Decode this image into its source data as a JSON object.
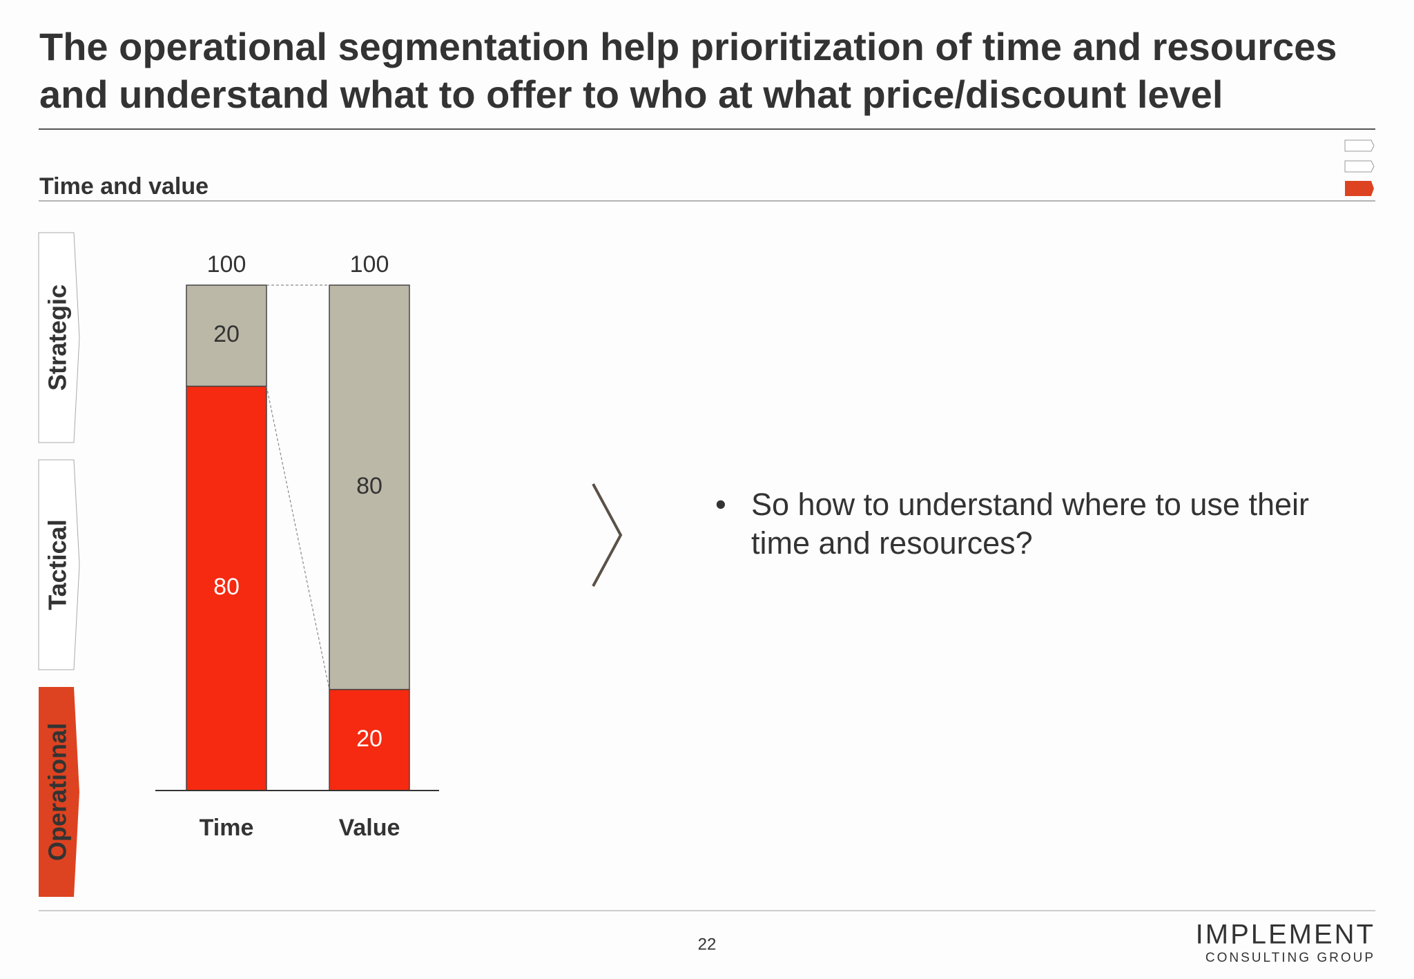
{
  "slide": {
    "title_lines": [
      "The operational segmentation help prioritization of time and resources",
      "and understand what to offer to who at what price/discount level"
    ],
    "section": "Time and value",
    "segments": [
      "Strategic",
      "Tactical",
      "Operational"
    ],
    "bullet": "•",
    "bullet_lines": [
      "So how to understand where to use their",
      "time and resources?"
    ],
    "page_number": "22",
    "logo": [
      "IMPLEMENT",
      "CONSULTING GROUP"
    ]
  },
  "chart_data": {
    "type": "stacked-bar",
    "categories": [
      "Time",
      "Value"
    ],
    "series": [
      {
        "color": "#f52a10",
        "values": [
          80,
          20
        ]
      },
      {
        "color": "#bcb8a8",
        "values": [
          20,
          80
        ]
      }
    ],
    "totals": [
      100,
      100
    ]
  }
}
